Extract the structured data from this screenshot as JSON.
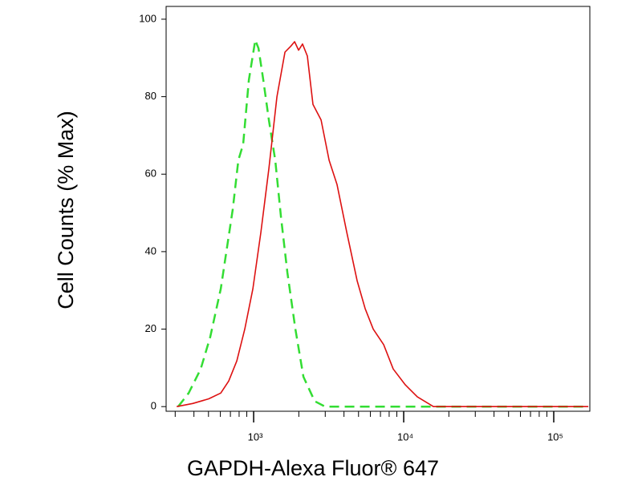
{
  "chart_data": {
    "type": "line",
    "xlabel": "GAPDH-Alexa Fluor® 647",
    "ylabel": "Cell Counts (% Max)",
    "xscale": "log",
    "xlim": [
      261,
      174000
    ],
    "ylim": [
      -1.2,
      103.3
    ],
    "xticks": [
      {
        "value": 1000,
        "label": "10³"
      },
      {
        "value": 10000,
        "label": "10⁴"
      },
      {
        "value": 100000,
        "label": "10⁵"
      }
    ],
    "xminor_ticks": [
      300,
      400,
      500,
      600,
      700,
      800,
      900,
      2000,
      3000,
      4000,
      5000,
      6000,
      7000,
      8000,
      9000,
      20000,
      30000,
      40000,
      50000,
      60000,
      70000,
      80000,
      90000
    ],
    "yticks": [
      0,
      20,
      40,
      60,
      80,
      100
    ],
    "grid": false,
    "series": [
      {
        "color": "#33dd33",
        "dashed": true,
        "x": [
          314,
          369,
          444,
          514,
          604,
          726,
          791,
          851,
          929,
          1025,
          1077,
          1159,
          1264,
          1394,
          1520,
          1678,
          1898,
          2146,
          2549,
          2990,
          170000
        ],
        "values": [
          0,
          3.5,
          9.7,
          18,
          30.4,
          51,
          63.6,
          67.7,
          84.3,
          94.6,
          92.5,
          84.3,
          73.9,
          63.6,
          49,
          34.6,
          20,
          7.7,
          1.4,
          0,
          0
        ]
      },
      {
        "color": "#dd1111",
        "dashed": false,
        "x": [
          307,
          393,
          502,
          604,
          682,
          772,
          873,
          988,
          1117,
          1264,
          1429,
          1617,
          1764,
          1875,
          1993,
          2118,
          2281,
          2486,
          2813,
          3182,
          3598,
          4172,
          4894,
          5537,
          6264,
          7351,
          8511,
          10250,
          12330,
          15790,
          170000
        ],
        "values": [
          0,
          0.8,
          2,
          3.5,
          6.6,
          11.8,
          20,
          30.4,
          45,
          61.5,
          80,
          91.5,
          93,
          94.2,
          92,
          93.6,
          90.5,
          78,
          74,
          63.6,
          57.3,
          45,
          32.5,
          25.3,
          20,
          16,
          9.7,
          5.6,
          2.5,
          0,
          0
        ]
      }
    ]
  }
}
